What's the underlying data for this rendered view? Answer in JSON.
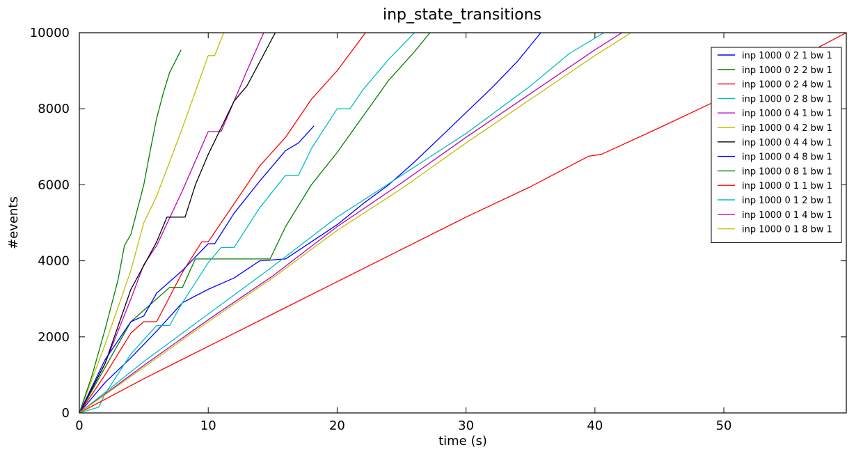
{
  "chart_data": {
    "type": "line",
    "title": "inp_state_transitions",
    "xlabel": "time (s)",
    "ylabel": "#events",
    "xlim": [
      0,
      59.5
    ],
    "ylim": [
      0,
      10000
    ],
    "xticks": [
      0,
      10,
      20,
      30,
      40,
      50
    ],
    "yticks": [
      0,
      2000,
      4000,
      6000,
      8000,
      10000
    ],
    "grid": false,
    "legend_position": "top-right",
    "series": [
      {
        "name": "inp 1000 0 2 1 bw 1",
        "color": "#0000ff",
        "x": [
          0,
          2,
          4,
          6,
          8,
          10,
          12,
          14,
          16,
          18,
          20,
          22,
          24,
          26,
          28,
          30,
          32,
          34,
          35.8
        ],
        "y": [
          0,
          800,
          1450,
          2150,
          2900,
          3250,
          3550,
          4000,
          4050,
          4500,
          4950,
          5500,
          6000,
          6600,
          7250,
          7900,
          8550,
          9250,
          10000
        ]
      },
      {
        "name": "inp 1000 0 2 2 bw 1",
        "color": "#008000",
        "x": [
          0,
          4,
          7,
          8,
          9,
          10,
          12,
          14,
          14.8,
          16,
          18,
          20,
          22,
          24,
          26,
          27.2
        ],
        "y": [
          0,
          2400,
          3300,
          3300,
          4050,
          4050,
          4050,
          4050,
          4050,
          4900,
          6000,
          6850,
          7800,
          8750,
          9500,
          10000
        ]
      },
      {
        "name": "inp 1000 0 2 4 bw 1",
        "color": "#ff0000",
        "x": [
          0,
          2,
          4,
          5,
          6,
          8,
          9.5,
          10,
          12,
          14,
          16,
          18,
          20,
          22.2
        ],
        "y": [
          0,
          1000,
          2100,
          2400,
          2400,
          3700,
          4500,
          4500,
          5500,
          6500,
          7250,
          8250,
          9000,
          10000
        ]
      },
      {
        "name": "inp 1000 0 2 8 bw 1",
        "color": "#00bfbf",
        "x": [
          0,
          1,
          1.5,
          2,
          4,
          6,
          7,
          8,
          10,
          11,
          12,
          14,
          16,
          17,
          18,
          20,
          21,
          22,
          24,
          26
        ],
        "y": [
          0,
          100,
          150,
          500,
          1550,
          2300,
          2300,
          2900,
          3950,
          4350,
          4350,
          5400,
          6250,
          6250,
          6950,
          8000,
          8000,
          8500,
          9300,
          10000
        ]
      },
      {
        "name": "inp 1000 0 4 1 bw 1",
        "color": "#bf00bf",
        "x": [
          0,
          2,
          4,
          5,
          6,
          8,
          10,
          11,
          12,
          13,
          14.3
        ],
        "y": [
          0,
          1300,
          3000,
          3900,
          4400,
          5850,
          7400,
          7400,
          8200,
          9000,
          10000
        ]
      },
      {
        "name": "inp 1000 0 4 2 bw 1",
        "color": "#bfbf00",
        "x": [
          0,
          2,
          4,
          5,
          6,
          8,
          10,
          10.5,
          11.2
        ],
        "y": [
          0,
          1800,
          3750,
          5000,
          5700,
          7500,
          9400,
          9400,
          10000
        ]
      },
      {
        "name": "inp 1000 0 4 4 bw 1",
        "color": "#000000",
        "x": [
          0,
          2,
          4,
          6,
          6.8,
          8.2,
          9,
          10,
          12,
          13,
          15.2
        ],
        "y": [
          0,
          1300,
          3250,
          4500,
          5150,
          5150,
          6000,
          6800,
          8200,
          8600,
          10000
        ]
      },
      {
        "name": "inp 1000 0 4 8 bw 1",
        "color": "#0000ff",
        "x": [
          0,
          2,
          4,
          5,
          6,
          8,
          10,
          10.5,
          12,
          14,
          16,
          17,
          18.2
        ],
        "y": [
          0,
          1400,
          2400,
          2550,
          3150,
          3750,
          4450,
          4450,
          5250,
          6100,
          6900,
          7100,
          7550
        ]
      },
      {
        "name": "inp 1000 0 8 1 bw 1",
        "color": "#008000",
        "x": [
          0,
          1,
          2,
          3,
          3.5,
          4,
          5,
          5.5,
          6,
          6.5,
          7,
          7.9
        ],
        "y": [
          0,
          1000,
          2200,
          3500,
          4400,
          4700,
          6000,
          6900,
          7750,
          8400,
          8950,
          9550
        ]
      },
      {
        "name": "inp 1000 0 1 1 bw 1",
        "color": "#ff0000",
        "x": [
          0,
          5,
          10,
          15,
          20,
          25,
          30,
          35,
          39.5,
          40.5,
          45,
          50,
          55,
          59.5
        ],
        "y": [
          0,
          900,
          1750,
          2600,
          3450,
          4300,
          5150,
          5950,
          6750,
          6800,
          7500,
          8300,
          9200,
          10000
        ]
      },
      {
        "name": "inp 1000 0 1 2 bw 1",
        "color": "#00bfbf",
        "x": [
          0,
          5,
          10,
          15,
          20,
          25,
          30,
          35,
          38,
          40.7
        ],
        "y": [
          0,
          1350,
          2600,
          3850,
          5150,
          6250,
          7350,
          8600,
          9450,
          10000
        ]
      },
      {
        "name": "inp 1000 0 1 4 bw 1",
        "color": "#bf00bf",
        "x": [
          0,
          5,
          10,
          15,
          20,
          25,
          30,
          35,
          40,
          42.1
        ],
        "y": [
          0,
          1250,
          2450,
          3600,
          4900,
          6050,
          7250,
          8400,
          9550,
          10000
        ]
      },
      {
        "name": "inp 1000 0 1 8 bw 1",
        "color": "#bfbf00",
        "x": [
          0,
          5,
          10,
          15,
          20,
          25,
          30,
          35,
          40,
          42.8
        ],
        "y": [
          0,
          1200,
          2400,
          3550,
          4800,
          5900,
          7100,
          8250,
          9400,
          10000
        ]
      }
    ]
  }
}
